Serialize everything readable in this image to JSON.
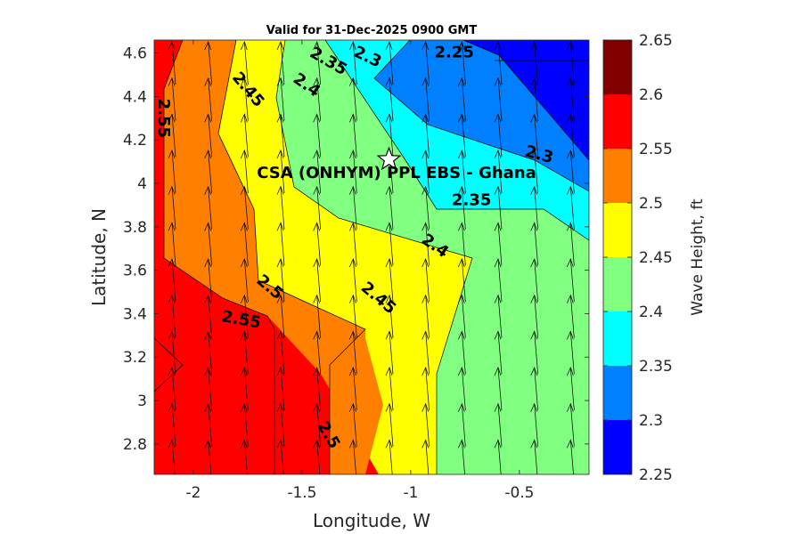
{
  "chart_data": {
    "type": "contour",
    "title": "Valid for 31-Dec-2025 0900 GMT",
    "xlabel": "Longitude, W",
    "ylabel": "Latitude, N",
    "xlim": [
      -2.18,
      -0.18
    ],
    "ylim": [
      2.66,
      4.66
    ],
    "x_ticks": [
      -2,
      -1.5,
      -1,
      -0.5
    ],
    "x_tick_labels": [
      "-2",
      "-1.5",
      "-1",
      "-0.5"
    ],
    "y_ticks": [
      2.8,
      3,
      3.2,
      3.4,
      3.6,
      3.8,
      4,
      4.2,
      4.4,
      4.6
    ],
    "y_tick_labels": [
      "2.8",
      "3",
      "3.2",
      "3.4",
      "3.6",
      "3.8",
      "4",
      "4.2",
      "4.4",
      "4.6"
    ],
    "colorbar": {
      "label": "Wave Height, ft",
      "ticks": [
        "2.25",
        "2.3",
        "2.35",
        "2.4",
        "2.45",
        "2.5",
        "2.55",
        "2.6",
        "2.65"
      ],
      "levels": [
        2.25,
        2.3,
        2.35,
        2.4,
        2.45,
        2.5,
        2.55,
        2.6,
        2.65
      ],
      "colors": [
        "#0000ff",
        "#0080ff",
        "#00ffff",
        "#80ff80",
        "#ffff00",
        "#ff8000",
        "#ff0000",
        "#800000"
      ]
    },
    "contour_labels": [
      {
        "text": "2.55",
        "lon": -2.14,
        "lat": 4.3,
        "rotate": 90
      },
      {
        "text": "2.45",
        "lon": -1.75,
        "lat": 4.43,
        "rotate": 50
      },
      {
        "text": "2.4",
        "lon": -1.48,
        "lat": 4.45,
        "rotate": 35
      },
      {
        "text": "2.35",
        "lon": -1.38,
        "lat": 4.56,
        "rotate": 30
      },
      {
        "text": "2.3",
        "lon": -1.2,
        "lat": 4.58,
        "rotate": 25
      },
      {
        "text": "2.25",
        "lon": -0.8,
        "lat": 4.6,
        "rotate": 0
      },
      {
        "text": "2.3",
        "lon": -0.41,
        "lat": 4.13,
        "rotate": 15
      },
      {
        "text": "2.35",
        "lon": -0.72,
        "lat": 3.92,
        "rotate": 0
      },
      {
        "text": "2.4",
        "lon": -0.89,
        "lat": 3.71,
        "rotate": 35
      },
      {
        "text": "2.45",
        "lon": -1.15,
        "lat": 3.47,
        "rotate": 40
      },
      {
        "text": "2.5",
        "lon": -1.65,
        "lat": 3.52,
        "rotate": 40
      },
      {
        "text": "2.55",
        "lon": -1.78,
        "lat": 3.37,
        "rotate": 10
      },
      {
        "text": "2.5",
        "lon": -1.38,
        "lat": 2.84,
        "rotate": 60
      }
    ],
    "site": {
      "name": "CSA (ONHYM) PPL EBS  - Ghana",
      "lon": -1.1,
      "lat": 4.11,
      "marker": "star"
    },
    "wind_vectors": {
      "direction": "north",
      "description": "arrows pointing north across grid"
    }
  }
}
